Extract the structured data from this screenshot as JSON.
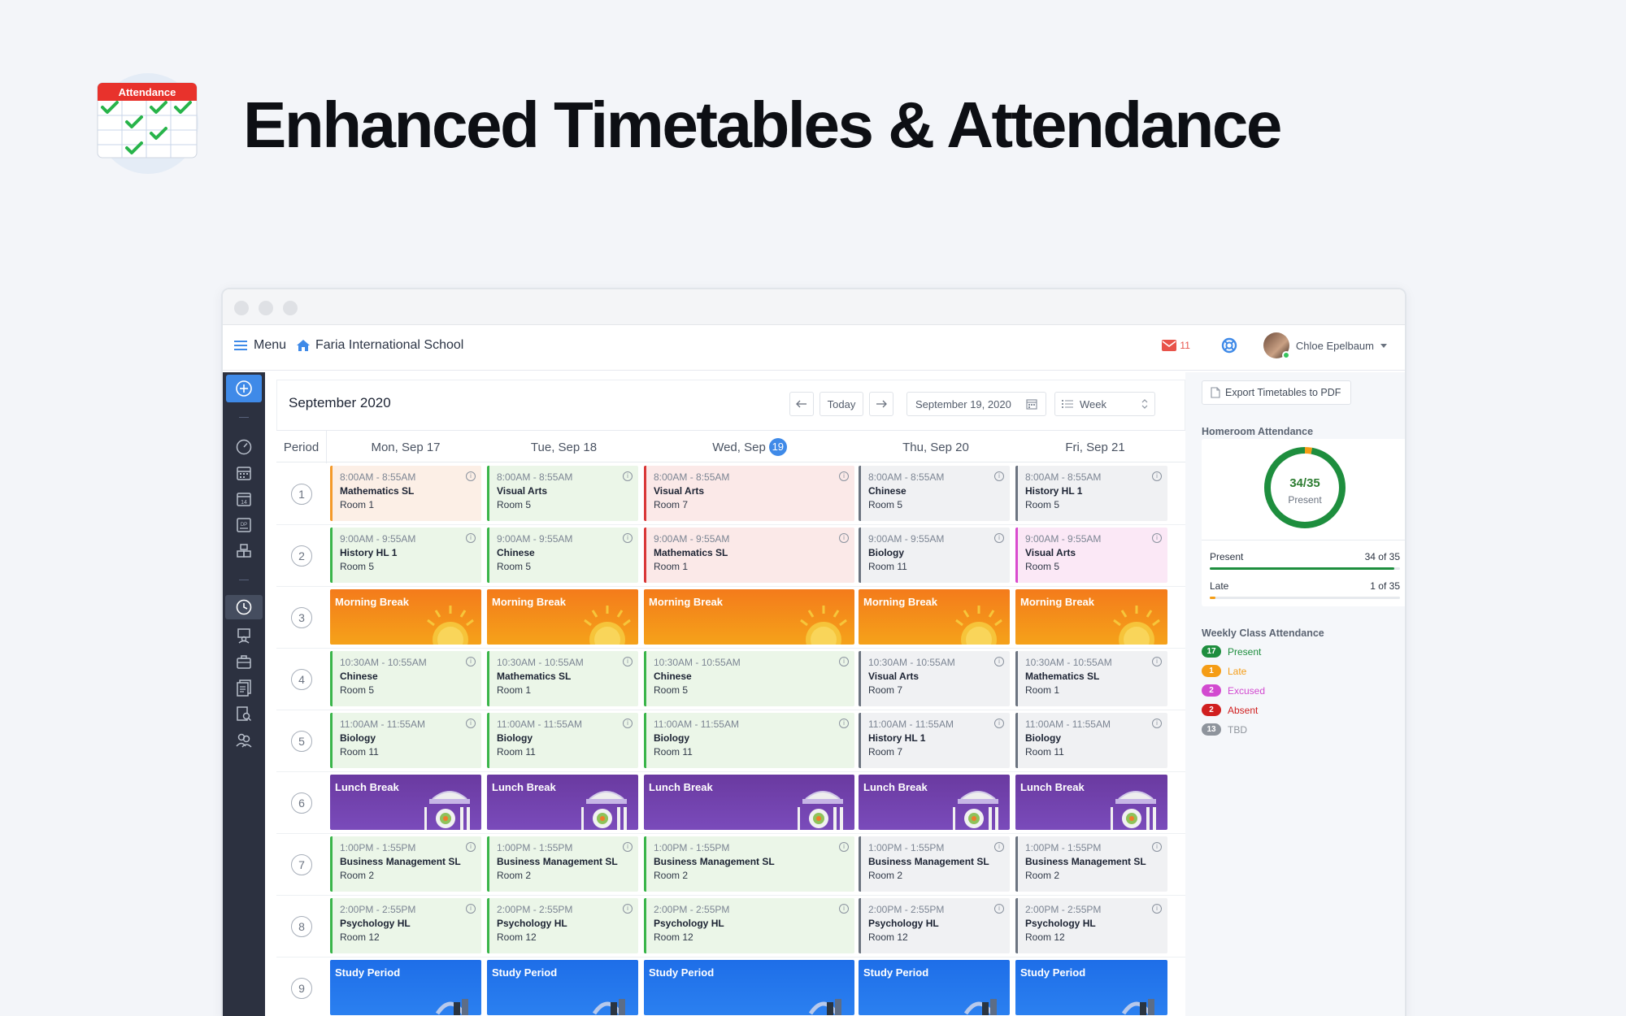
{
  "hero": {
    "title": "Enhanced Timetables & Attendance",
    "icon_label": "Attendance",
    "icon": "attendance-calendar-icon"
  },
  "nav": {
    "menu_label": "Menu",
    "school_name": "Faria International School",
    "mail_count": "11",
    "user_name": "Chloe Epelbaum"
  },
  "calendar": {
    "month_label": "September 2020",
    "today_label": "Today",
    "date_value": "September 19, 2020",
    "view_value": "Week",
    "period_header": "Period",
    "days": [
      {
        "label": "Mon, Sep 17"
      },
      {
        "label": "Tue, Sep 18"
      },
      {
        "label": "Wed, Sep",
        "badge": "19"
      },
      {
        "label": "Thu, Sep 20"
      },
      {
        "label": "Fri, Sep 21"
      }
    ],
    "periods": [
      {
        "num": "1",
        "cells": [
          {
            "time": "8:00AM - 8:55AM",
            "subject": "Mathematics SL",
            "room": "Room 1",
            "tone": "peach"
          },
          {
            "time": "8:00AM - 8:55AM",
            "subject": "Visual Arts",
            "room": "Room 5",
            "tone": "green"
          },
          {
            "time": "8:00AM - 8:55AM",
            "subject": "Visual Arts",
            "room": "Room 7",
            "tone": "pink"
          },
          {
            "time": "8:00AM - 8:55AM",
            "subject": "Chinese",
            "room": "Room 5",
            "tone": "gray"
          },
          {
            "time": "8:00AM - 8:55AM",
            "subject": "History HL 1",
            "room": "Room 5",
            "tone": "gray"
          }
        ]
      },
      {
        "num": "2",
        "cells": [
          {
            "time": "9:00AM - 9:55AM",
            "subject": "History HL 1",
            "room": "Room 5",
            "tone": "green"
          },
          {
            "time": "9:00AM - 9:55AM",
            "subject": "Chinese",
            "room": "Room 5",
            "tone": "green"
          },
          {
            "time": "9:00AM - 9:55AM",
            "subject": "Mathematics SL",
            "room": "Room 1",
            "tone": "pink"
          },
          {
            "time": "9:00AM - 9:55AM",
            "subject": "Biology",
            "room": "Room 11",
            "tone": "gray"
          },
          {
            "time": "9:00AM - 9:55AM",
            "subject": "Visual Arts",
            "room": "Room 5",
            "tone": "mag"
          }
        ]
      },
      {
        "num": "3",
        "break": "Morning Break",
        "kind": "morning"
      },
      {
        "num": "4",
        "cells": [
          {
            "time": "10:30AM - 10:55AM",
            "subject": "Chinese",
            "room": "Room 5",
            "tone": "green"
          },
          {
            "time": "10:30AM - 10:55AM",
            "subject": "Mathematics SL",
            "room": "Room 1",
            "tone": "green"
          },
          {
            "time": "10:30AM - 10:55AM",
            "subject": "Chinese",
            "room": "Room 5",
            "tone": "green"
          },
          {
            "time": "10:30AM - 10:55AM",
            "subject": "Visual Arts",
            "room": "Room 7",
            "tone": "gray"
          },
          {
            "time": "10:30AM - 10:55AM",
            "subject": "Mathematics SL",
            "room": "Room 1",
            "tone": "gray"
          }
        ]
      },
      {
        "num": "5",
        "cells": [
          {
            "time": "11:00AM - 11:55AM",
            "subject": "Biology",
            "room": "Room 11",
            "tone": "green"
          },
          {
            "time": "11:00AM - 11:55AM",
            "subject": "Biology",
            "room": "Room 11",
            "tone": "green"
          },
          {
            "time": "11:00AM - 11:55AM",
            "subject": "Biology",
            "room": "Room 11",
            "tone": "green"
          },
          {
            "time": "11:00AM - 11:55AM",
            "subject": "History HL 1",
            "room": "Room 7",
            "tone": "gray"
          },
          {
            "time": "11:00AM - 11:55AM",
            "subject": "Biology",
            "room": "Room 11",
            "tone": "gray"
          }
        ]
      },
      {
        "num": "6",
        "break": "Lunch Break",
        "kind": "lunch"
      },
      {
        "num": "7",
        "cells": [
          {
            "time": "1:00PM - 1:55PM",
            "subject": "Business Management SL",
            "room": "Room 2",
            "tone": "green"
          },
          {
            "time": "1:00PM - 1:55PM",
            "subject": "Business Management SL",
            "room": "Room 2",
            "tone": "green"
          },
          {
            "time": "1:00PM - 1:55PM",
            "subject": "Business Management SL",
            "room": "Room 2",
            "tone": "green"
          },
          {
            "time": "1:00PM - 1:55PM",
            "subject": "Business Management SL",
            "room": "Room 2",
            "tone": "gray"
          },
          {
            "time": "1:00PM - 1:55PM",
            "subject": "Business Management SL",
            "room": "Room 2",
            "tone": "gray"
          }
        ]
      },
      {
        "num": "8",
        "cells": [
          {
            "time": "2:00PM - 2:55PM",
            "subject": "Psychology HL",
            "room": "Room 12",
            "tone": "green"
          },
          {
            "time": "2:00PM - 2:55PM",
            "subject": "Psychology HL",
            "room": "Room 12",
            "tone": "green"
          },
          {
            "time": "2:00PM - 2:55PM",
            "subject": "Psychology HL",
            "room": "Room 12",
            "tone": "green"
          },
          {
            "time": "2:00PM - 2:55PM",
            "subject": "Psychology HL",
            "room": "Room 12",
            "tone": "gray"
          },
          {
            "time": "2:00PM - 2:55PM",
            "subject": "Psychology HL",
            "room": "Room 12",
            "tone": "gray"
          }
        ]
      },
      {
        "num": "9",
        "break": "Study Period",
        "kind": "study"
      }
    ]
  },
  "panel": {
    "export_label": "Export Timetables to PDF",
    "homeroom_title": "Homeroom Attendance",
    "ring_value": "34/35",
    "ring_label": "Present",
    "ring_fraction": 0.9714,
    "stats": [
      {
        "label": "Present",
        "value": "34 of 35",
        "fraction": 0.9714,
        "color": "#1e8e3e"
      },
      {
        "label": "Late",
        "value": "1 of 35",
        "fraction": 0.0286,
        "color": "#f59d16"
      }
    ],
    "weekly_title": "Weekly Class Attendance",
    "weekly": [
      {
        "count": "17",
        "label": "Present",
        "color": "#1e8e3e"
      },
      {
        "count": "1",
        "label": "Late",
        "color": "#f59d16"
      },
      {
        "count": "2",
        "label": "Excused",
        "color": "#d24ad0"
      },
      {
        "count": "2",
        "label": "Absent",
        "color": "#d01f1f"
      },
      {
        "count": "13",
        "label": "TBD",
        "color": "#8e949c"
      }
    ]
  }
}
